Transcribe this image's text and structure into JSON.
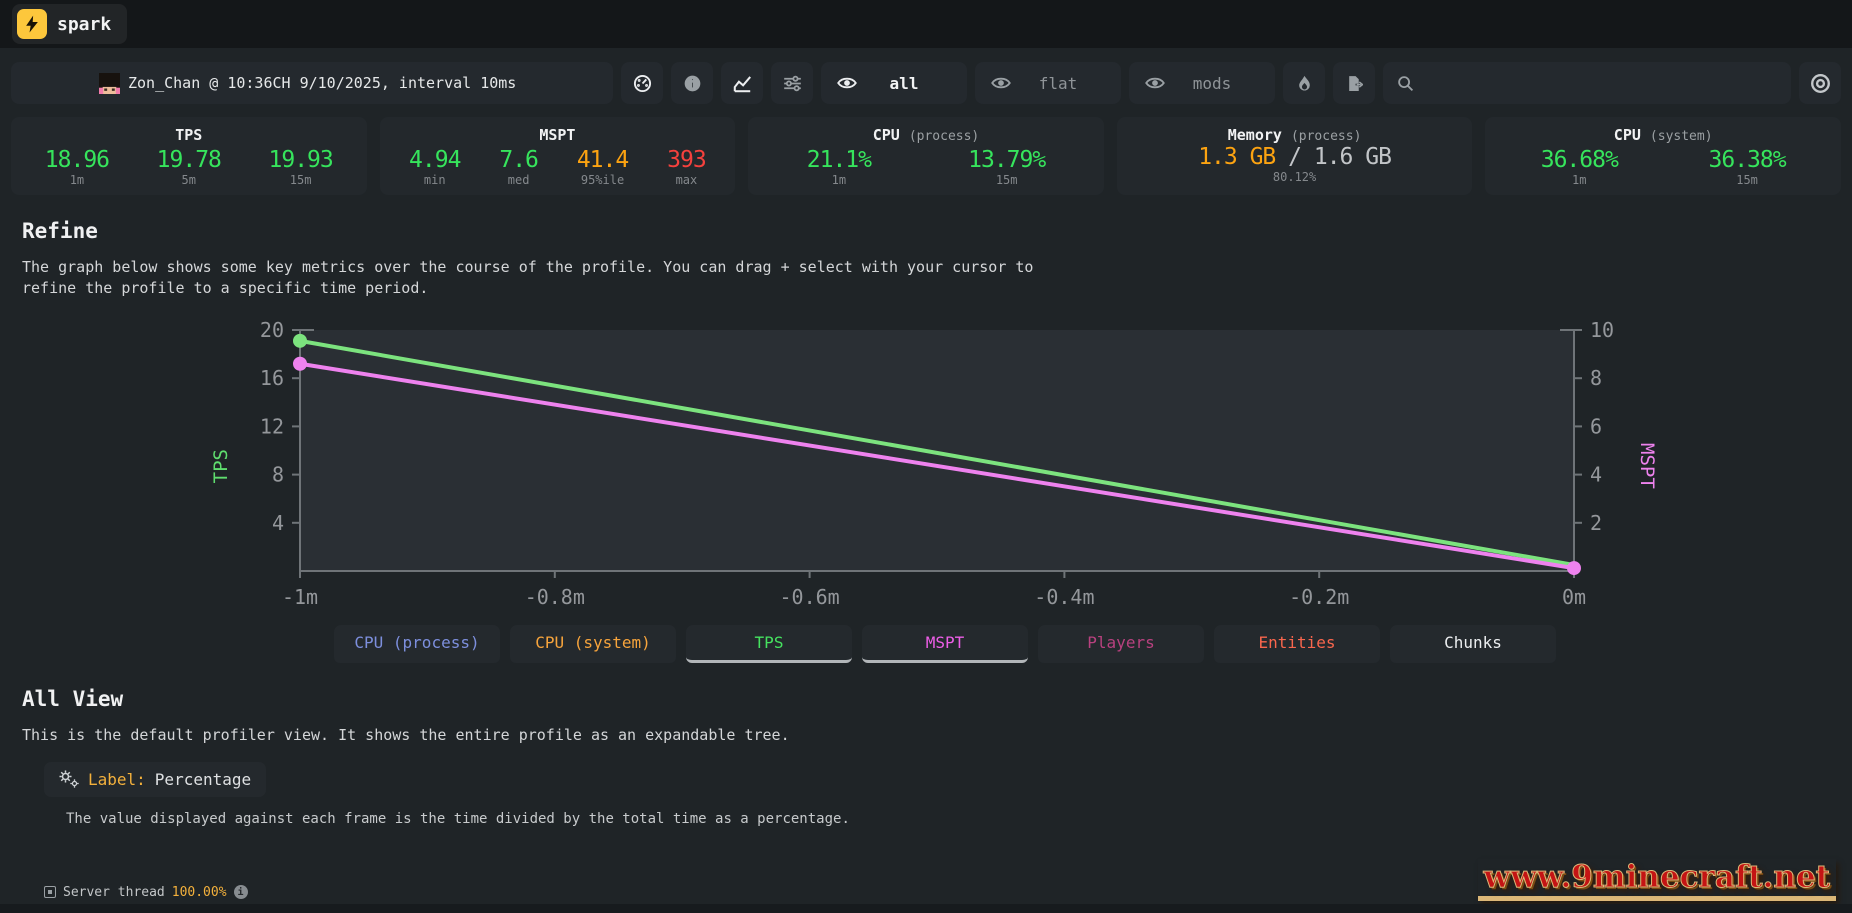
{
  "topbar": {
    "brand": "spark"
  },
  "header": {
    "session": "Zon_Chan @ 10:36CH 9/10/2025, interval 10ms",
    "toggles": [
      {
        "label": "all",
        "active": true
      },
      {
        "label": "flat",
        "active": false
      },
      {
        "label": "mods",
        "active": false
      }
    ],
    "search": {
      "value": "",
      "placeholder": ""
    }
  },
  "icons": [
    "lightning-bolt",
    "avatar",
    "gauge",
    "info",
    "line-chart",
    "sliders",
    "eye",
    "flame",
    "export",
    "search",
    "record",
    "gears",
    "expand-toggle",
    "info-circle"
  ],
  "stats": {
    "panels": [
      {
        "title": "TPS",
        "values": [
          {
            "v": "18.96",
            "label": "1m",
            "color": "#36e45c"
          },
          {
            "v": "19.78",
            "label": "5m",
            "color": "#36e45c"
          },
          {
            "v": "19.93",
            "label": "15m",
            "color": "#36e45c"
          }
        ]
      },
      {
        "title": "MSPT",
        "values": [
          {
            "v": "4.94",
            "label": "min",
            "color": "#36e45c"
          },
          {
            "v": "7.6",
            "label": "med",
            "color": "#36e45c"
          },
          {
            "v": "41.4",
            "label": "95%ile",
            "color": "#fca311"
          },
          {
            "v": "393",
            "label": "max",
            "color": "#f5413d"
          }
        ]
      },
      {
        "title": "CPU",
        "subtitle": "(process)",
        "values": [
          {
            "v": "21.1%",
            "label": "1m",
            "color": "#36e45c"
          },
          {
            "v": "13.79%",
            "label": "15m",
            "color": "#36e45c"
          }
        ]
      },
      {
        "title": "Memory",
        "subtitle": "(process)",
        "memory": {
          "used": "1.3 GB",
          "divider": "/",
          "total": "1.6 GB",
          "label": "80.12%",
          "used_color": "#fca311"
        }
      },
      {
        "title": "CPU",
        "subtitle": "(system)",
        "values": [
          {
            "v": "36.68%",
            "label": "1m",
            "color": "#36e45c"
          },
          {
            "v": "36.38%",
            "label": "15m",
            "color": "#36e45c"
          }
        ]
      }
    ]
  },
  "refine": {
    "heading": "Refine",
    "description": "The graph below shows some key metrics over the course of the profile. You can drag + select with your cursor to refine the profile to a specific time period."
  },
  "chart_data": {
    "type": "line",
    "x_range": [
      -1,
      0
    ],
    "x_ticks": [
      {
        "v": -1,
        "label": "-1m"
      },
      {
        "v": -0.8,
        "label": "-0.8m"
      },
      {
        "v": -0.6,
        "label": "-0.6m"
      },
      {
        "v": -0.4,
        "label": "-0.4m"
      },
      {
        "v": -0.2,
        "label": "-0.2m"
      },
      {
        "v": 0,
        "label": "0m"
      }
    ],
    "left_axis": {
      "label": "TPS",
      "range": [
        0,
        20
      ],
      "ticks": [
        4,
        8,
        12,
        16,
        20
      ],
      "color": "#5fdd6e"
    },
    "right_axis": {
      "label": "MSPT",
      "range": [
        0,
        10
      ],
      "ticks": [
        2,
        4,
        6,
        8,
        10
      ],
      "color": "#ee82ee"
    },
    "series": [
      {
        "name": "TPS",
        "axis": "left",
        "color": "#7ce37e",
        "points": [
          [
            -1,
            19.1
          ],
          [
            0,
            0.5
          ]
        ],
        "dots": [
          "start"
        ]
      },
      {
        "name": "MSPT",
        "axis": "right",
        "color": "#ee82ee",
        "points": [
          [
            -1,
            8.6
          ],
          [
            0,
            0.12
          ]
        ],
        "dots": [
          "start",
          "end"
        ]
      }
    ],
    "plot_bg": "#2a2f34",
    "axis_color": "#6f7478",
    "tick_text_color": "#94979b",
    "grid": false,
    "legend_position": "none"
  },
  "series_buttons": [
    {
      "label": "CPU (process)",
      "color": "#7d8fdd",
      "active": false
    },
    {
      "label": "CPU (system)",
      "color": "#f7a43c",
      "active": false
    },
    {
      "label": "TPS",
      "color": "#45e25f",
      "active": true
    },
    {
      "label": "MSPT",
      "color": "#ee5ee8",
      "active": true
    },
    {
      "label": "Players",
      "color": "#b8417f",
      "active": false
    },
    {
      "label": "Entities",
      "color": "#f9664d",
      "active": false
    },
    {
      "label": "Chunks",
      "color": "#eceef0",
      "active": false
    }
  ],
  "allview": {
    "heading": "All View",
    "description": "This is the default profiler view. It shows the entire profile as an expandable tree.",
    "badge": {
      "label": "Label:",
      "value": "Percentage"
    },
    "note": "The value displayed against each frame is the time divided by the total time as a percentage."
  },
  "footer": {
    "thread": "Server thread",
    "percent": "100.00%"
  },
  "watermark": "www.9minecraft.net"
}
